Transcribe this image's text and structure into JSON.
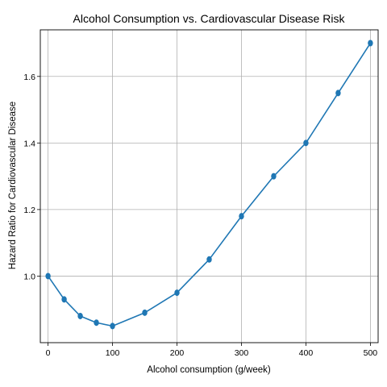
{
  "chart_data": {
    "type": "line",
    "title": "Alcohol Consumption vs. Cardiovascular Disease Risk",
    "xlabel": "Alcohol consumption (g/week)",
    "ylabel": "Hazard Ratio for Cardiovascular Disease",
    "xlim": [
      -12,
      512
    ],
    "ylim": [
      0.8,
      1.74
    ],
    "xticks": [
      0,
      100,
      200,
      300,
      400,
      500
    ],
    "yticks": [
      1.0,
      1.2,
      1.4,
      1.6
    ],
    "grid": true,
    "series": [
      {
        "color": "#1f77b4",
        "marker": "circle",
        "x": [
          0,
          25,
          50,
          75,
          100,
          150,
          200,
          250,
          300,
          350,
          400,
          450,
          500
        ],
        "y": [
          1.0,
          0.93,
          0.88,
          0.86,
          0.85,
          0.89,
          0.95,
          1.05,
          1.18,
          1.3,
          1.4,
          1.55,
          1.7
        ]
      }
    ]
  }
}
